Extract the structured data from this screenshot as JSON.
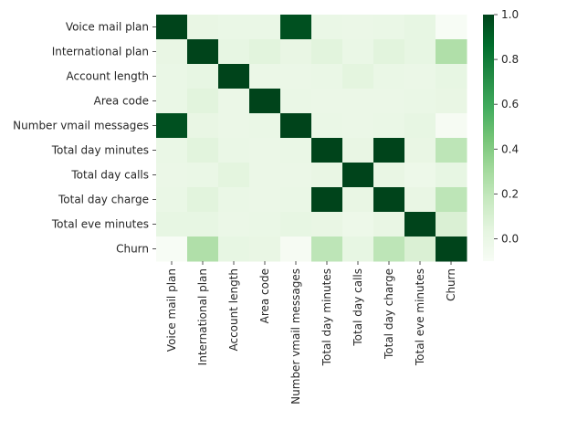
{
  "chart_data": {
    "type": "heatmap",
    "title": "",
    "xlabel": "",
    "ylabel": "",
    "labels": [
      "Voice mail plan",
      "International plan",
      "Account length",
      "Area code",
      "Number vmail messages",
      "Total day minutes",
      "Total day calls",
      "Total day charge",
      "Total eve minutes",
      "Churn"
    ],
    "matrix": [
      [
        1.0,
        0.01,
        0.0,
        0.0,
        0.96,
        0.0,
        -0.01,
        0.0,
        0.02,
        -0.1
      ],
      [
        0.01,
        1.0,
        0.02,
        0.05,
        0.01,
        0.05,
        0.0,
        0.05,
        0.02,
        0.26
      ],
      [
        0.0,
        0.02,
        1.0,
        -0.01,
        -0.01,
        0.0,
        0.04,
        0.0,
        -0.01,
        0.02
      ],
      [
        0.0,
        0.05,
        -0.01,
        1.0,
        0.0,
        -0.01,
        -0.01,
        -0.01,
        0.0,
        0.01
      ],
      [
        0.96,
        0.01,
        -0.01,
        0.0,
        1.0,
        0.0,
        -0.01,
        0.0,
        0.02,
        -0.09
      ],
      [
        0.0,
        0.05,
        0.0,
        -0.01,
        0.0,
        1.0,
        0.01,
        1.0,
        0.01,
        0.21
      ],
      [
        -0.01,
        0.0,
        0.04,
        -0.01,
        -0.01,
        0.01,
        1.0,
        0.01,
        -0.02,
        0.02
      ],
      [
        0.0,
        0.05,
        0.0,
        -0.01,
        0.0,
        1.0,
        0.01,
        1.0,
        0.01,
        0.21
      ],
      [
        0.02,
        0.02,
        -0.01,
        0.0,
        0.02,
        0.01,
        -0.02,
        0.01,
        1.0,
        0.09
      ],
      [
        -0.1,
        0.26,
        0.02,
        0.01,
        -0.09,
        0.21,
        0.02,
        0.21,
        0.09,
        1.0
      ]
    ],
    "colormap": "Greens",
    "colors": [
      "#f7fcf5",
      "#e5f5e0",
      "#c7e9c0",
      "#a1d99b",
      "#74c476",
      "#41ab5d",
      "#238b45",
      "#006d2c",
      "#00441b"
    ],
    "vmin": -0.1,
    "vmax": 1.0,
    "colorbar_ticks": [
      "0.0",
      "0.2",
      "0.4",
      "0.6",
      "0.8",
      "1.0"
    ],
    "colorbar_values": [
      0.0,
      0.2,
      0.4,
      0.6,
      0.8,
      1.0
    ],
    "colorbar_placement": "right",
    "grid": false
  }
}
